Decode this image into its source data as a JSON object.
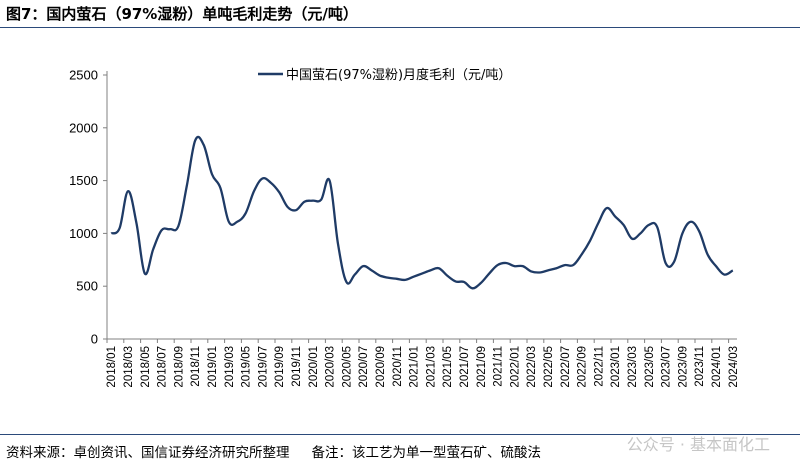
{
  "header": {
    "title": "图7：国内萤石（97%湿粉）单吨毛利走势（元/吨）"
  },
  "footer": {
    "source": "资料来源：卓创资讯、国信证券经济研究所整理",
    "note": "备注：该工艺为单一型萤石矿、硫酸法",
    "watermark": "公众号 · 基本面化工"
  },
  "colors": {
    "line": "#1f3b66",
    "axis": "#808080",
    "rule": "#2b4a7a"
  },
  "chart_data": {
    "type": "line",
    "title": "",
    "xlabel": "",
    "ylabel": "",
    "ylim": [
      0,
      2500
    ],
    "yticks": [
      "0",
      "500",
      "1000",
      "1500",
      "2000",
      "2500"
    ],
    "xtick_labels": [
      "2018/01",
      "2018/03",
      "2018/05",
      "2018/07",
      "2018/09",
      "2018/11",
      "2019/01",
      "2019/03",
      "2019/05",
      "2019/07",
      "2019/09",
      "2019/11",
      "2020/01",
      "2020/03",
      "2020/05",
      "2020/07",
      "2020/09",
      "2020/11",
      "2021/01",
      "2021/03",
      "2021/05",
      "2021/07",
      "2021/09",
      "2021/11",
      "2022/01",
      "2022/03",
      "2022/05",
      "2022/07",
      "2022/09",
      "2022/11",
      "2023/01",
      "2023/03",
      "2023/05",
      "2023/07",
      "2023/09",
      "2023/11",
      "2024/01",
      "2024/03"
    ],
    "legend": {
      "position": "top-center",
      "entries": [
        "中国萤石(97%湿粉)月度毛利（元/吨）"
      ]
    },
    "series": [
      {
        "name": "中国萤石(97%湿粉)月度毛利（元/吨）",
        "x": [
          "2018/01",
          "2018/02",
          "2018/03",
          "2018/04",
          "2018/05",
          "2018/06",
          "2018/07",
          "2018/08",
          "2018/09",
          "2018/10",
          "2018/11",
          "2018/12",
          "2019/01",
          "2019/02",
          "2019/03",
          "2019/04",
          "2019/05",
          "2019/06",
          "2019/07",
          "2019/08",
          "2019/09",
          "2019/10",
          "2019/11",
          "2019/12",
          "2020/01",
          "2020/02",
          "2020/03",
          "2020/04",
          "2020/05",
          "2020/06",
          "2020/07",
          "2020/08",
          "2020/09",
          "2020/10",
          "2020/11",
          "2020/12",
          "2021/01",
          "2021/02",
          "2021/03",
          "2021/04",
          "2021/05",
          "2021/06",
          "2021/07",
          "2021/08",
          "2021/09",
          "2021/10",
          "2021/11",
          "2021/12",
          "2022/01",
          "2022/02",
          "2022/03",
          "2022/04",
          "2022/05",
          "2022/06",
          "2022/07",
          "2022/08",
          "2022/09",
          "2022/10",
          "2022/11",
          "2022/12",
          "2023/01",
          "2023/02",
          "2023/03",
          "2023/04",
          "2023/05",
          "2023/06",
          "2023/07",
          "2023/08",
          "2023/09",
          "2023/10",
          "2023/11",
          "2023/12",
          "2024/01",
          "2024/02",
          "2024/03"
        ],
        "values": [
          1000,
          1050,
          1400,
          1100,
          620,
          850,
          1030,
          1040,
          1070,
          1450,
          1880,
          1840,
          1560,
          1430,
          1110,
          1110,
          1190,
          1400,
          1520,
          1480,
          1390,
          1250,
          1220,
          1300,
          1310,
          1320,
          1500,
          900,
          540,
          610,
          690,
          650,
          600,
          580,
          570,
          560,
          590,
          620,
          650,
          670,
          600,
          545,
          540,
          480,
          530,
          620,
          700,
          720,
          690,
          690,
          640,
          630,
          650,
          670,
          700,
          700,
          800,
          930,
          1100,
          1240,
          1160,
          1080,
          950,
          1000,
          1080,
          1060,
          720,
          730,
          1000,
          1110,
          1020,
          800,
          690,
          610,
          650
        ]
      }
    ]
  }
}
